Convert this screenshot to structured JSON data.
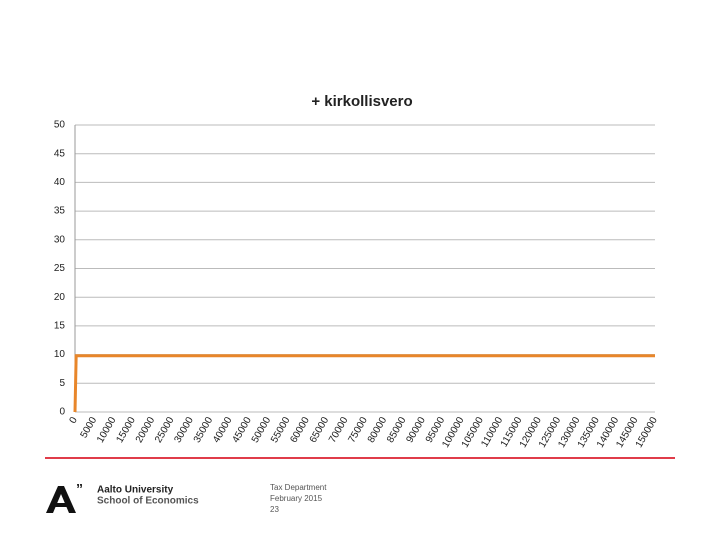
{
  "chart_data": {
    "type": "line",
    "title": "+ kirkollisvero",
    "xlim": [
      0,
      150000
    ],
    "xticks": [
      0,
      5000,
      10000,
      15000,
      20000,
      25000,
      30000,
      35000,
      40000,
      45000,
      50000,
      55000,
      60000,
      65000,
      70000,
      75000,
      80000,
      85000,
      90000,
      95000,
      100000,
      105000,
      110000,
      115000,
      120000,
      125000,
      130000,
      135000,
      140000,
      145000,
      150000
    ],
    "ylim": [
      0,
      50
    ],
    "yticks": [
      0,
      5,
      10,
      15,
      20,
      25,
      30,
      35,
      40,
      45,
      50
    ],
    "grid": true,
    "series": [
      {
        "color": "#e8862a",
        "x": [
          0,
          300,
          150000
        ],
        "values": [
          0,
          9.8,
          9.8
        ]
      }
    ]
  },
  "footer": {
    "university": "Aalto University",
    "school": "School of Economics",
    "department": "Tax Department",
    "date": "February 2015",
    "page": "23"
  }
}
